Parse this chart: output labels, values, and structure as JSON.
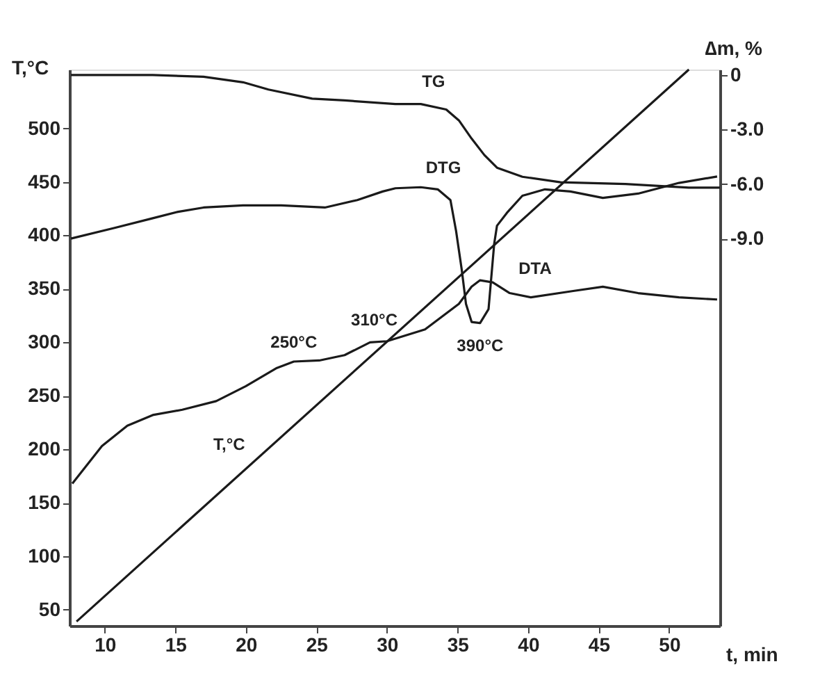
{
  "chart_data": {
    "type": "line",
    "xlabel": "t, min",
    "ylabel": "T,°C",
    "y2label": "∆m, %",
    "xlim": [
      7.5,
      53.6
    ],
    "xticks": [
      10,
      15,
      20,
      25,
      30,
      35,
      40,
      45,
      50
    ],
    "ylim": [
      35,
      555
    ],
    "yticks": [
      50,
      100,
      150,
      200,
      250,
      300,
      350,
      400,
      450,
      500
    ],
    "y2lim": [
      -30.3,
      0.3
    ],
    "y2ticks": [
      {
        "value": 0,
        "label": "0"
      },
      {
        "value": -3,
        "label": "-3.0"
      },
      {
        "value": -6,
        "label": "-6.0"
      },
      {
        "value": -9,
        "label": "-9.0"
      }
    ],
    "grid": false,
    "marker": "none",
    "line_style": "solid",
    "series": [
      {
        "color": "#1a1a1a",
        "x": [
          8.0,
          51.4
        ],
        "values": [
          39,
          555
        ]
      },
      {
        "color": "#1a1a1a",
        "axis": "y2",
        "x": [
          7.6,
          13.4,
          17.0,
          19.8,
          21.6,
          24.7,
          27.0,
          30.6,
          32.4,
          34.2,
          35.1,
          36.0,
          36.9,
          37.8,
          39.6,
          42.3,
          46.9,
          51.4,
          53.6
        ],
        "values": [
          0,
          0,
          -0.1,
          -0.4,
          -0.8,
          -1.3,
          -1.4,
          -1.6,
          -1.6,
          -1.9,
          -2.5,
          -3.5,
          -4.4,
          -5.1,
          -5.6,
          -5.9,
          -6.0,
          -6.2,
          -6.2
        ]
      },
      {
        "color": "#1a1a1a",
        "x": [
          7.6,
          10.7,
          13.4,
          15.2,
          17.0,
          19.8,
          22.5,
          25.6,
          27.9,
          29.7,
          30.6,
          32.4,
          33.6,
          34.5,
          34.9,
          35.3,
          35.6,
          36.0,
          36.6,
          37.2,
          37.6,
          37.8,
          38.5,
          39.6,
          41.2,
          43.0,
          45.3,
          47.8,
          50.7,
          53.4
        ],
        "values": [
          397,
          407,
          416,
          422,
          426,
          428,
          428,
          426,
          433,
          441,
          444,
          445,
          443,
          433,
          404,
          368,
          336,
          319,
          318,
          331,
          392,
          409,
          421,
          437,
          443,
          441,
          435,
          439,
          449,
          455
        ]
      },
      {
        "color": "#1a1a1a",
        "x": [
          7.7,
          9.8,
          11.6,
          13.4,
          15.5,
          17.9,
          20.0,
          22.2,
          23.4,
          25.2,
          27.0,
          28.8,
          30.0,
          32.7,
          35.1,
          36.0,
          36.6,
          37.5,
          38.7,
          40.2,
          43.2,
          45.3,
          47.8,
          50.7,
          53.4
        ],
        "values": [
          168,
          203,
          222,
          232,
          237,
          245,
          259,
          276,
          282,
          283,
          288,
          300,
          301,
          312,
          336,
          352,
          358,
          356,
          346,
          342,
          348,
          352,
          346,
          342,
          340
        ]
      }
    ],
    "annotations": [
      {
        "text": "TG",
        "x": 33.3,
        "y": 523
      },
      {
        "text": "DTG",
        "x": 34.0,
        "y": 440
      },
      {
        "text": "DTA",
        "x": 40.5,
        "y": 343
      },
      {
        "text": "250°C",
        "x": 23.4,
        "y": 282
      },
      {
        "text": "310°C",
        "x": 29.1,
        "y": 300
      },
      {
        "text": "390°C",
        "x": 36.6,
        "y": 318
      },
      {
        "text": "T,°C",
        "x": 20.2,
        "y": 184
      }
    ]
  }
}
